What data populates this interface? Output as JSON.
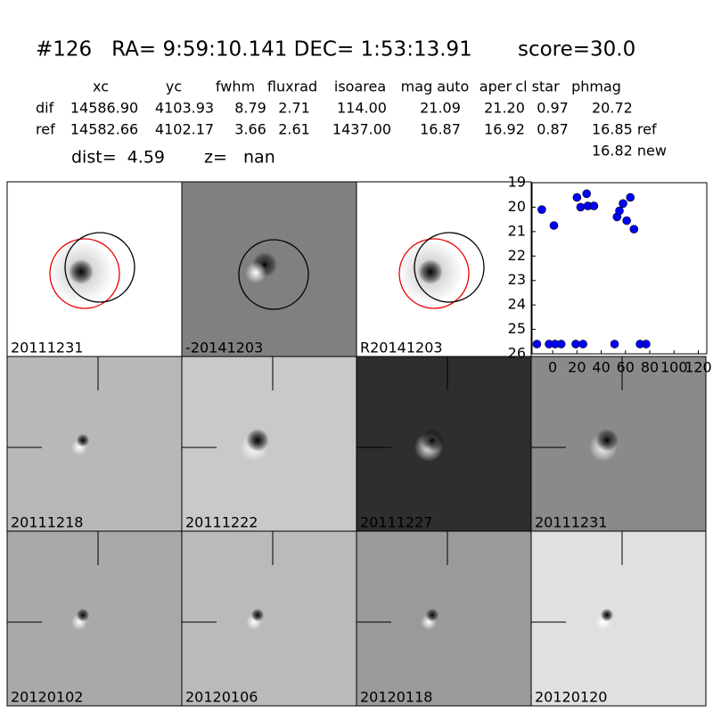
{
  "header": {
    "title": "#126   RA= 9:59:10.141 DEC= 1:53:13.91       score=30.0"
  },
  "table": {
    "columns": [
      "xc",
      "yc",
      "fwhm",
      "fluxrad",
      "isoarea",
      "mag auto",
      "aper",
      "cl star",
      "phmag"
    ],
    "rows": [
      [
        "dif",
        "14586.90",
        "4103.93",
        "8.79",
        "2.71",
        "114.00",
        "21.09",
        "21.20",
        "0.97",
        "20.72"
      ],
      [
        "ref",
        "14582.66",
        "4102.17",
        "3.66",
        "2.61",
        "1437.00",
        "16.87",
        "16.92",
        "0.87",
        "16.85 ref"
      ]
    ],
    "extra": "16.82 new",
    "dist": "dist=  4.59",
    "z": "z=   nan"
  },
  "panels": [
    {
      "label": "20111231",
      "bg": "#ffffff",
      "label_color": "#000000"
    },
    {
      "label": "-20141203",
      "bg": "#808080",
      "label_color": "#000000"
    },
    {
      "label": "R20141203",
      "bg": "#ffffff",
      "label_color": "#000000"
    },
    {
      "label": "20111218",
      "bg": "#b8b8b8",
      "label_color": "#000000"
    },
    {
      "label": "20111222",
      "bg": "#c9c9c9",
      "label_color": "#000000"
    },
    {
      "label": "20111227",
      "bg": "#2e2e2e",
      "label_color": "#000000"
    },
    {
      "label": "20111231",
      "bg": "#8a8a8a",
      "label_color": "#ff0000"
    },
    {
      "label": "20120102",
      "bg": "#a9a9a9",
      "label_color": "#000000"
    },
    {
      "label": "20120106",
      "bg": "#bababa",
      "label_color": "#000000"
    },
    {
      "label": "20120118",
      "bg": "#9a9a9a",
      "label_color": "#000000"
    },
    {
      "label": "20120120",
      "bg": "#e0e0e0",
      "label_color": "#000000"
    }
  ],
  "chart_data": {
    "type": "scatter",
    "color": "#0000ff",
    "x": [
      -9,
      1,
      20,
      23,
      28,
      29,
      34,
      53,
      55,
      58,
      61,
      64,
      67,
      -13,
      -3,
      2,
      7,
      19,
      25,
      51,
      72,
      77
    ],
    "values": [
      20.1,
      20.75,
      19.6,
      20.0,
      19.45,
      19.95,
      19.95,
      20.4,
      20.15,
      19.85,
      20.55,
      19.6,
      20.9,
      25.6,
      25.6,
      25.6,
      25.6,
      25.6,
      25.6,
      25.6,
      25.6,
      25.6
    ],
    "xlim": [
      -17,
      127
    ],
    "xticks": [
      0,
      20,
      40,
      60,
      80,
      100,
      120
    ],
    "ylim": [
      26,
      19
    ],
    "yticks": [
      19,
      20,
      21,
      22,
      23,
      24,
      25,
      26
    ]
  }
}
